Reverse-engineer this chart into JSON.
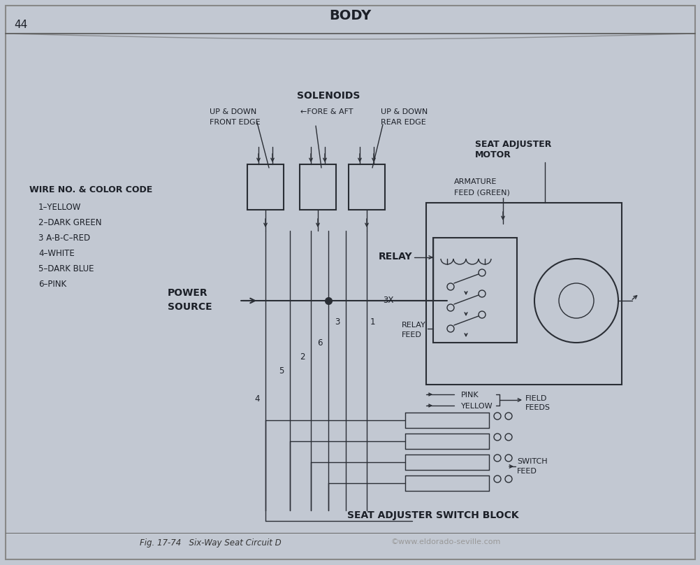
{
  "bg_color": "#c2c8d2",
  "title": "BODY",
  "page_number": "44",
  "fig_caption": "Fig. 17-74   Six-Way Seat Circuit D",
  "watermark": "©www.eldorado-seville.com",
  "wire_color_title": "WIRE NO. & COLOR CODE",
  "wire_colors": [
    "1–YELLOW",
    "2–DARK GREEN",
    "3 A-B-C–RED",
    "4–WHITE",
    "5–DARK BLUE",
    "6–PINK"
  ],
  "lc": "#2a2e35",
  "tc": "#1c2028",
  "light_tc": "#3a4050"
}
